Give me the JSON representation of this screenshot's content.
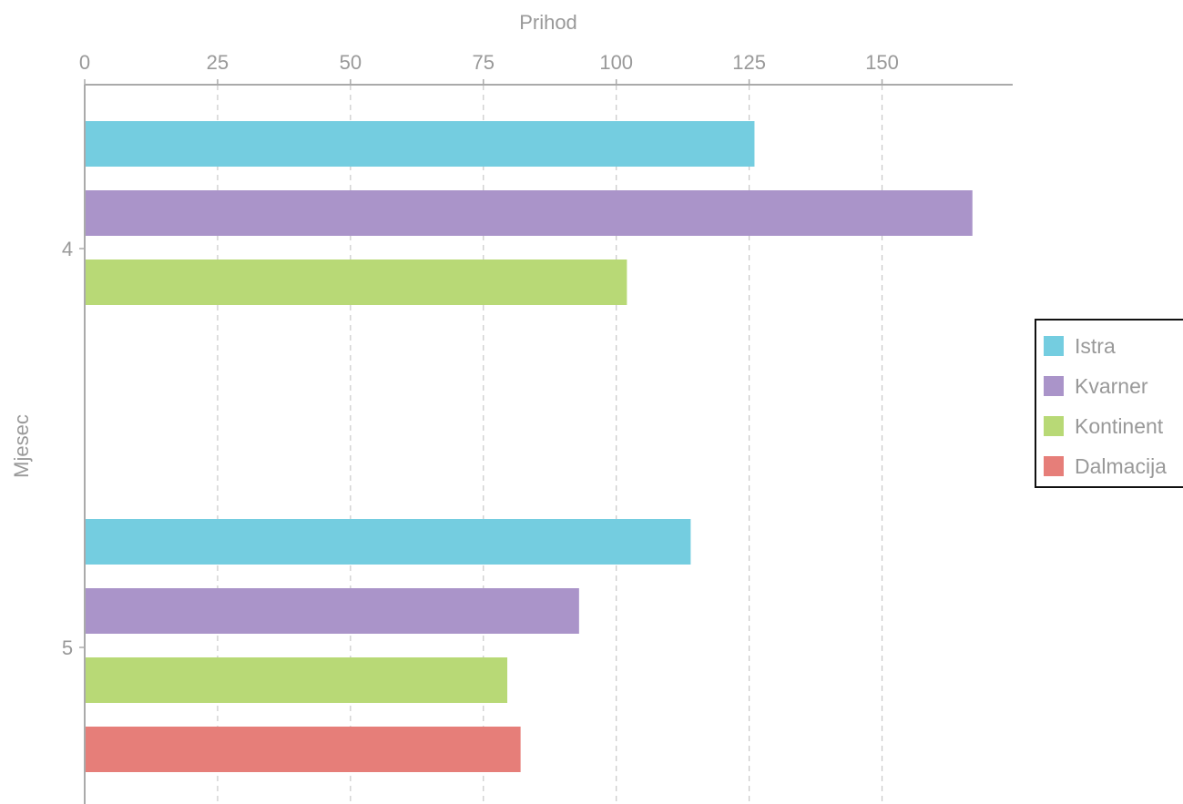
{
  "chart_data": {
    "type": "bar",
    "orientation": "horizontal",
    "xlabel": "Prihod",
    "ylabel": "Mjesec",
    "x_axis_position": "top",
    "xlim": [
      0,
      175
    ],
    "xticks": [
      0,
      25,
      50,
      75,
      100,
      125,
      150
    ],
    "grid": true,
    "legend_position": "right",
    "categories": [
      "4",
      "5"
    ],
    "series": [
      {
        "name": "Istra",
        "color": "#74cde0",
        "values": [
          126,
          114
        ]
      },
      {
        "name": "Kvarner",
        "color": "#aa94c9",
        "values": [
          167,
          93
        ]
      },
      {
        "name": "Kontinent",
        "color": "#b8d976",
        "values": [
          102,
          79.5
        ]
      },
      {
        "name": "Dalmacija",
        "color": "#e67e79",
        "values": [
          null,
          82
        ]
      }
    ]
  }
}
